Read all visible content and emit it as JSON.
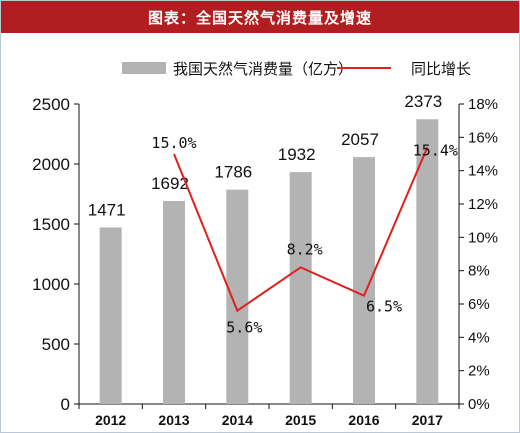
{
  "title": "图表：全国天然气消费量及增速",
  "colors": {
    "title_bg": "#b01e22",
    "bar": "#b3b3b3",
    "line": "#e0201c"
  },
  "chart_data": {
    "type": "bar",
    "categories": [
      "2012",
      "2013",
      "2014",
      "2015",
      "2016",
      "2017"
    ],
    "series": [
      {
        "name": "我国天然气消费量（亿方）",
        "type": "bar",
        "axis": "left",
        "values": [
          1471,
          1692,
          1786,
          1932,
          2057,
          2373
        ],
        "labels": [
          "1471",
          "1692",
          "1786",
          "1932",
          "2057",
          "2373"
        ]
      },
      {
        "name": "同比增长",
        "type": "line",
        "axis": "right",
        "values": [
          null,
          15.0,
          5.6,
          8.2,
          6.5,
          15.4
        ],
        "labels": [
          "",
          "15.0%",
          "5.6%",
          "8.2%",
          "6.5%",
          "15.4%"
        ]
      }
    ],
    "y_left": {
      "min": 0,
      "max": 2500,
      "step": 500,
      "ticks": [
        "0",
        "500",
        "1000",
        "1500",
        "2000",
        "2500"
      ]
    },
    "y_right": {
      "min": 0,
      "max": 18,
      "step": 2,
      "ticks": [
        "0%",
        "2%",
        "4%",
        "6%",
        "8%",
        "10%",
        "12%",
        "14%",
        "16%",
        "18%"
      ]
    },
    "legend_position": "top",
    "grid": false
  }
}
